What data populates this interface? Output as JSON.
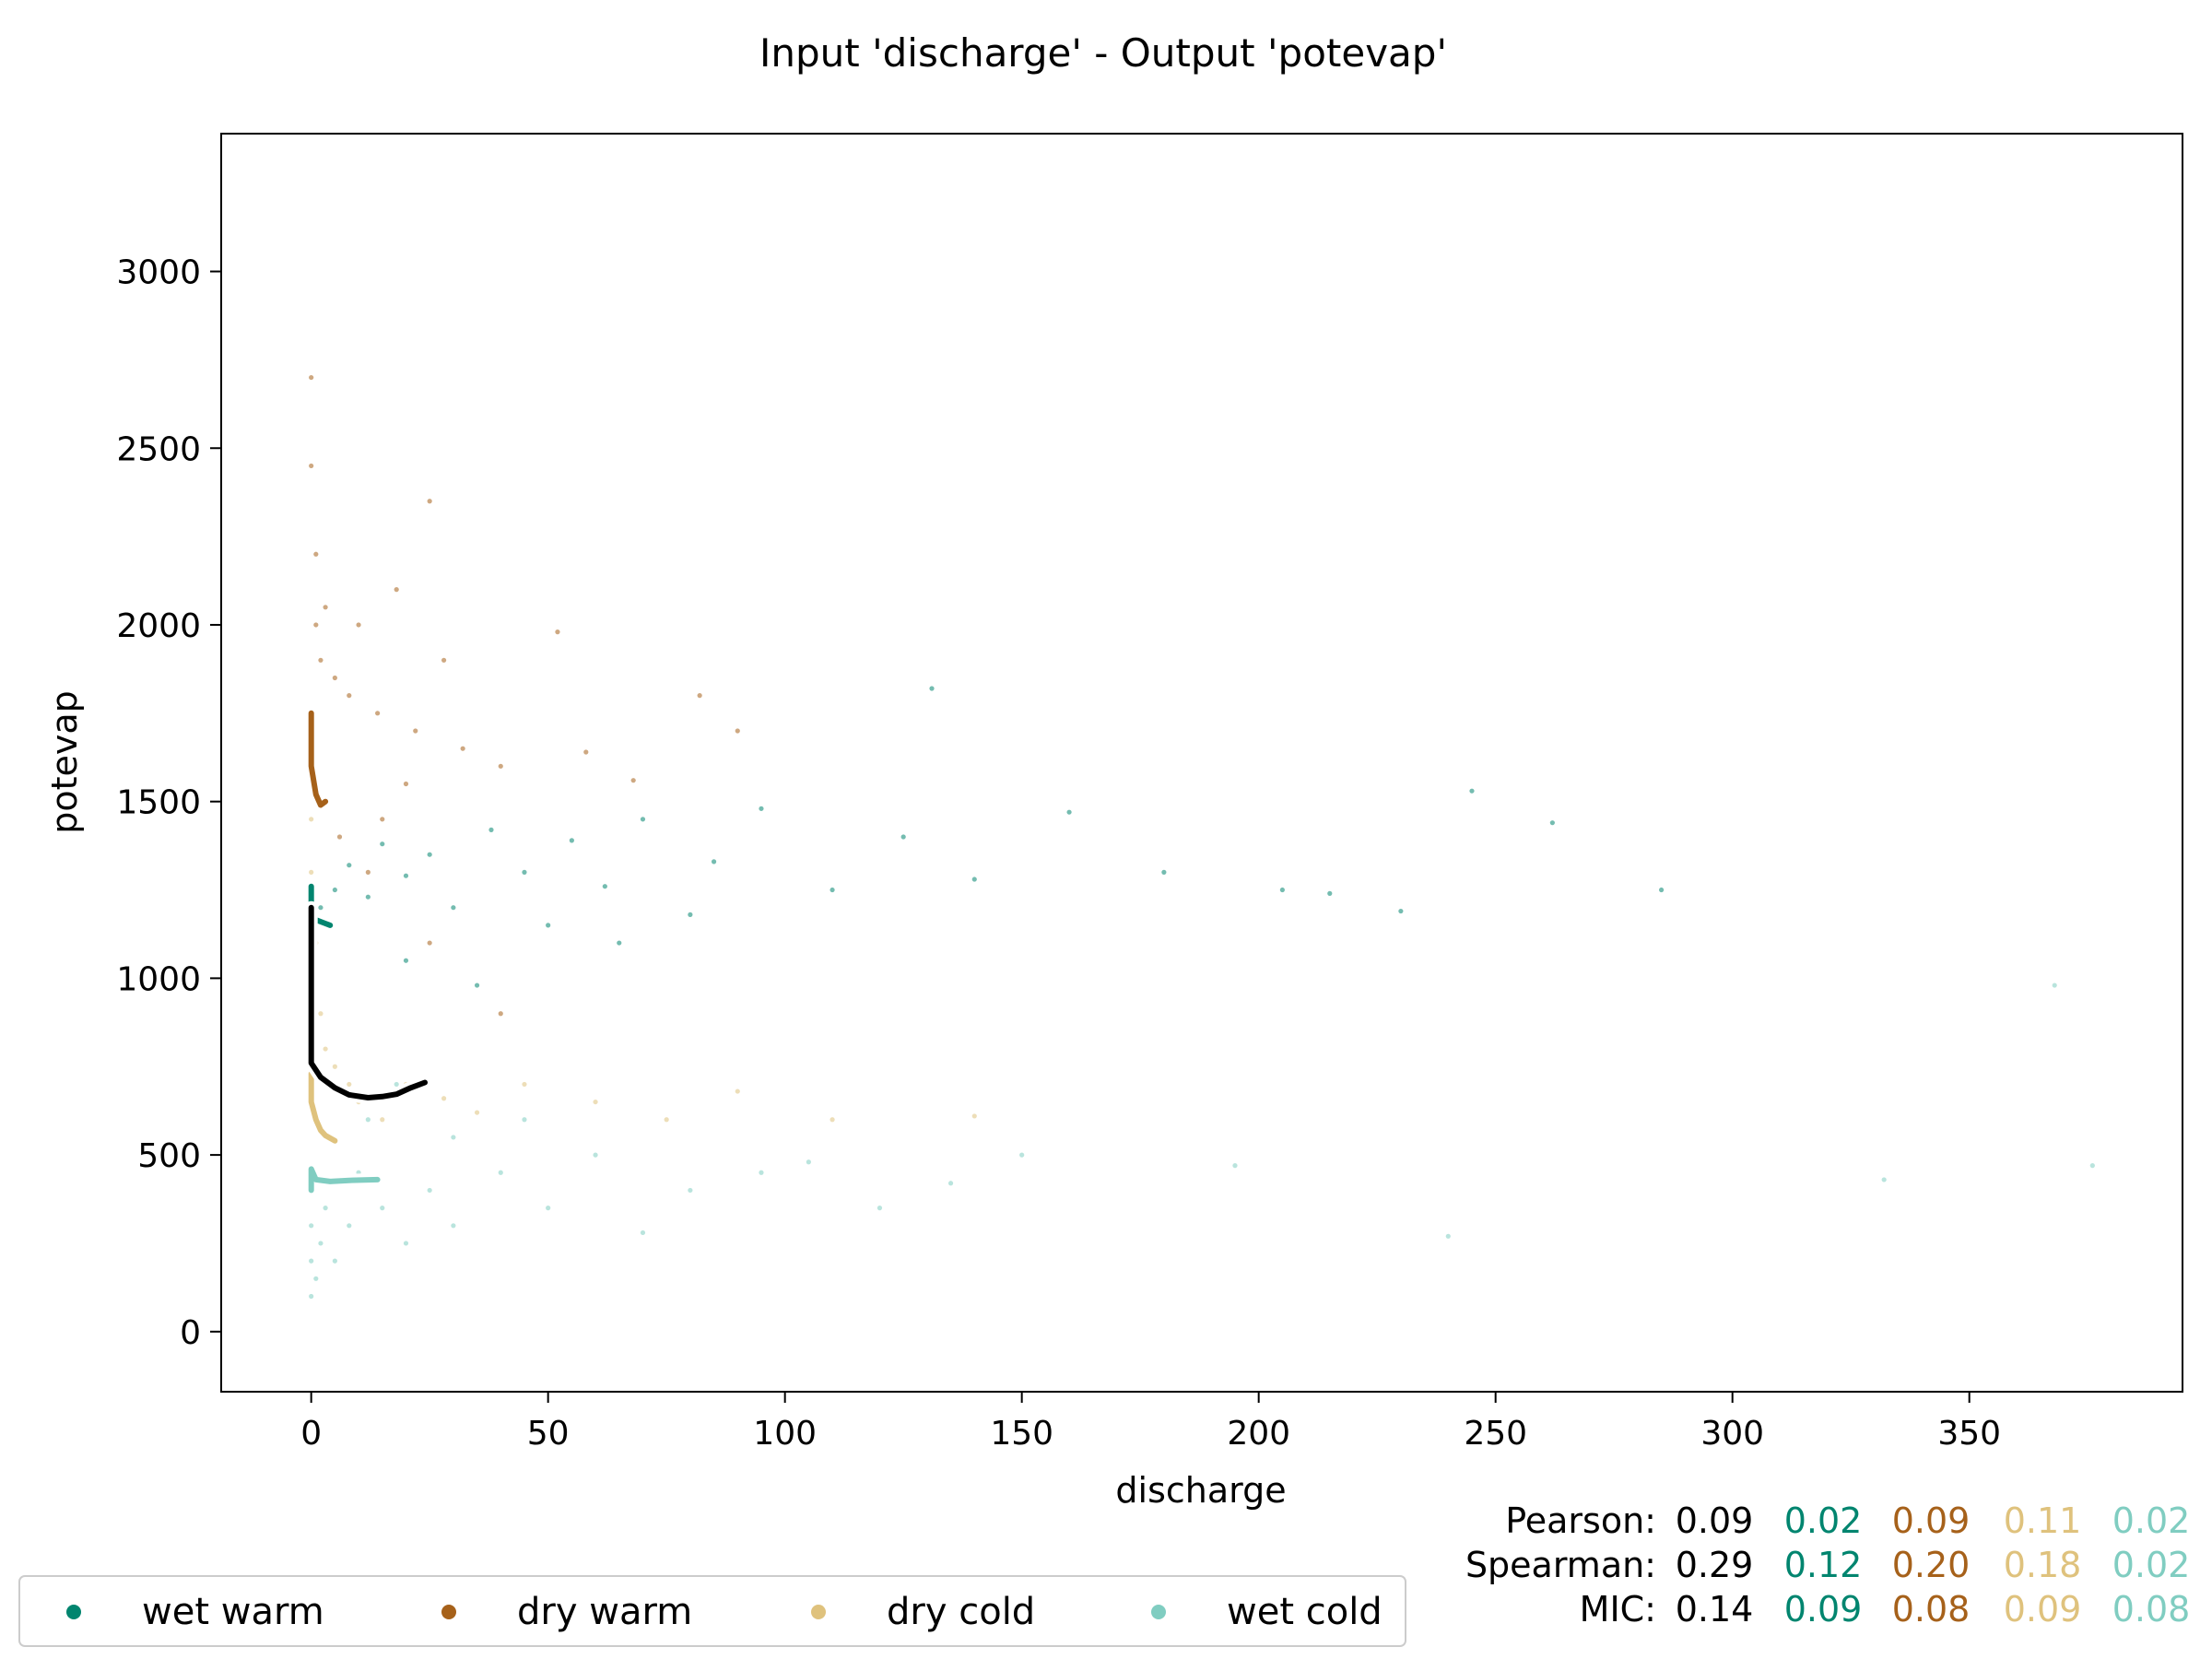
{
  "chart_data": {
    "type": "scatter",
    "title": "Input 'discharge' - Output 'potevap'",
    "xlabel": "discharge",
    "ylabel": "potevap",
    "xlim": [
      -19,
      395
    ],
    "ylim": [
      -170,
      3390
    ],
    "xticks": [
      0,
      50,
      100,
      150,
      200,
      250,
      300,
      350
    ],
    "yticks": [
      0,
      500,
      1000,
      1500,
      2000,
      2500,
      3000
    ],
    "grid": false,
    "legend_position": "bottom-left, below axes",
    "series": [
      {
        "name": "wet warm",
        "color": "#01856f",
        "points": [
          [
            2,
            1200
          ],
          [
            5,
            1250
          ],
          [
            8,
            1320
          ],
          [
            12,
            1230
          ],
          [
            15,
            1380
          ],
          [
            20,
            1290
          ],
          [
            25,
            1350
          ],
          [
            30,
            1200
          ],
          [
            38,
            1420
          ],
          [
            45,
            1300
          ],
          [
            55,
            1390
          ],
          [
            62,
            1260
          ],
          [
            70,
            1450
          ],
          [
            85,
            1330
          ],
          [
            95,
            1480
          ],
          [
            110,
            1250
          ],
          [
            125,
            1400
          ],
          [
            140,
            1280
          ],
          [
            160,
            1470
          ],
          [
            180,
            1300
          ],
          [
            205,
            1250
          ],
          [
            215,
            1240
          ],
          [
            230,
            1190
          ],
          [
            245,
            1530
          ],
          [
            262,
            1440
          ],
          [
            285,
            1250
          ],
          [
            131,
            1820
          ],
          [
            20,
            1050
          ],
          [
            35,
            980
          ],
          [
            50,
            1150
          ],
          [
            65,
            1100
          ],
          [
            80,
            1180
          ]
        ],
        "trend": [
          [
            0,
            1260
          ],
          [
            0,
            1170
          ],
          [
            1,
            1165
          ],
          [
            3,
            1155
          ],
          [
            4,
            1150
          ]
        ]
      },
      {
        "name": "dry warm",
        "color": "#a6611a",
        "points": [
          [
            0,
            2700
          ],
          [
            0,
            2450
          ],
          [
            1,
            2200
          ],
          [
            1,
            2000
          ],
          [
            2,
            1900
          ],
          [
            3,
            2050
          ],
          [
            5,
            1850
          ],
          [
            8,
            1800
          ],
          [
            10,
            2000
          ],
          [
            14,
            1750
          ],
          [
            18,
            2100
          ],
          [
            22,
            1700
          ],
          [
            25,
            2350
          ],
          [
            28,
            1900
          ],
          [
            32,
            1650
          ],
          [
            40,
            1600
          ],
          [
            52,
            1980
          ],
          [
            58,
            1640
          ],
          [
            68,
            1560
          ],
          [
            82,
            1800
          ],
          [
            90,
            1700
          ],
          [
            3,
            1500
          ],
          [
            6,
            1400
          ],
          [
            12,
            1300
          ],
          [
            25,
            1100
          ],
          [
            40,
            900
          ],
          [
            15,
            1450
          ],
          [
            20,
            1550
          ]
        ],
        "trend": [
          [
            0,
            1750
          ],
          [
            0,
            1600
          ],
          [
            1,
            1520
          ],
          [
            2,
            1490
          ],
          [
            3,
            1500
          ]
        ]
      },
      {
        "name": "dry cold",
        "color": "#dfc27d",
        "points": [
          [
            0,
            1450
          ],
          [
            0,
            1300
          ],
          [
            1,
            1100
          ],
          [
            2,
            900
          ],
          [
            3,
            800
          ],
          [
            5,
            750
          ],
          [
            8,
            700
          ],
          [
            10,
            650
          ],
          [
            15,
            600
          ],
          [
            20,
            700
          ],
          [
            28,
            660
          ],
          [
            35,
            620
          ],
          [
            45,
            700
          ],
          [
            60,
            650
          ],
          [
            75,
            600
          ],
          [
            90,
            680
          ],
          [
            110,
            600
          ],
          [
            140,
            610
          ]
        ],
        "trend": [
          [
            0,
            730
          ],
          [
            0,
            650
          ],
          [
            1,
            600
          ],
          [
            2,
            570
          ],
          [
            3,
            555
          ],
          [
            5,
            540
          ]
        ]
      },
      {
        "name": "wet cold",
        "color": "#80cdc1",
        "points": [
          [
            0,
            100
          ],
          [
            0,
            200
          ],
          [
            0,
            300
          ],
          [
            1,
            150
          ],
          [
            2,
            250
          ],
          [
            3,
            350
          ],
          [
            5,
            200
          ],
          [
            8,
            300
          ],
          [
            10,
            450
          ],
          [
            15,
            350
          ],
          [
            20,
            250
          ],
          [
            25,
            400
          ],
          [
            30,
            300
          ],
          [
            40,
            450
          ],
          [
            50,
            350
          ],
          [
            60,
            500
          ],
          [
            70,
            280
          ],
          [
            80,
            400
          ],
          [
            95,
            450
          ],
          [
            105,
            480
          ],
          [
            120,
            350
          ],
          [
            135,
            420
          ],
          [
            150,
            500
          ],
          [
            195,
            470
          ],
          [
            240,
            270
          ],
          [
            332,
            430
          ],
          [
            376,
            470
          ],
          [
            368,
            980
          ],
          [
            12,
            600
          ],
          [
            18,
            700
          ],
          [
            30,
            550
          ],
          [
            45,
            600
          ]
        ],
        "trend": [
          [
            0,
            400
          ],
          [
            0,
            460
          ],
          [
            1,
            430
          ],
          [
            4,
            425
          ],
          [
            8,
            428
          ],
          [
            14,
            430
          ]
        ]
      }
    ],
    "overall_trend": {
      "color": "#000000",
      "points": [
        [
          0,
          1200
        ],
        [
          0,
          1000
        ],
        [
          0,
          900
        ],
        [
          0,
          760
        ],
        [
          2,
          720
        ],
        [
          5,
          690
        ],
        [
          8,
          670
        ],
        [
          12,
          662
        ],
        [
          15,
          665
        ],
        [
          18,
          672
        ],
        [
          21,
          690
        ],
        [
          24,
          705
        ]
      ]
    },
    "legend": [
      "wet warm",
      "dry warm",
      "dry cold",
      "wet cold"
    ],
    "stats": [
      {
        "label": "Pearson:",
        "values": [
          "0.09",
          "0.02",
          "0.09",
          "0.11",
          "0.02"
        ]
      },
      {
        "label": "Spearman:",
        "values": [
          "0.29",
          "0.12",
          "0.20",
          "0.18",
          "0.02"
        ]
      },
      {
        "label": "MIC:",
        "values": [
          "0.14",
          "0.09",
          "0.08",
          "0.09",
          "0.08"
        ]
      }
    ],
    "stats_colors": [
      "#000000",
      "#01856f",
      "#a6611a",
      "#dfc27d",
      "#80cdc1"
    ]
  }
}
